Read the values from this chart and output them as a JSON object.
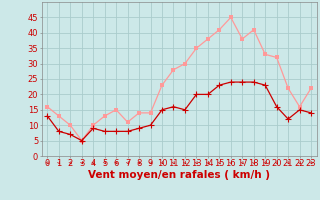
{
  "x": [
    0,
    1,
    2,
    3,
    4,
    5,
    6,
    7,
    8,
    9,
    10,
    11,
    12,
    13,
    14,
    15,
    16,
    17,
    18,
    19,
    20,
    21,
    22,
    23
  ],
  "vent_moyen": [
    13,
    8,
    7,
    5,
    9,
    8,
    8,
    8,
    9,
    10,
    15,
    16,
    15,
    20,
    20,
    23,
    24,
    24,
    24,
    23,
    16,
    12,
    15,
    14
  ],
  "rafales": [
    16,
    13,
    10,
    5,
    10,
    13,
    15,
    11,
    14,
    14,
    23,
    28,
    30,
    35,
    38,
    41,
    45,
    38,
    41,
    33,
    32,
    22,
    16,
    22
  ],
  "bg_color": "#cce8e8",
  "grid_color": "#aacccc",
  "line_moyen_color": "#cc0000",
  "line_rafales_color": "#ff9999",
  "marker_size": 2.5,
  "xlabel": "Vent moyen/en rafales ( km/h )",
  "ylim": [
    0,
    50
  ],
  "yticks": [
    0,
    5,
    10,
    15,
    20,
    25,
    30,
    35,
    40,
    45
  ],
  "xlim": [
    -0.5,
    23.5
  ],
  "xlabel_fontsize": 7.5,
  "tick_fontsize": 6.0
}
